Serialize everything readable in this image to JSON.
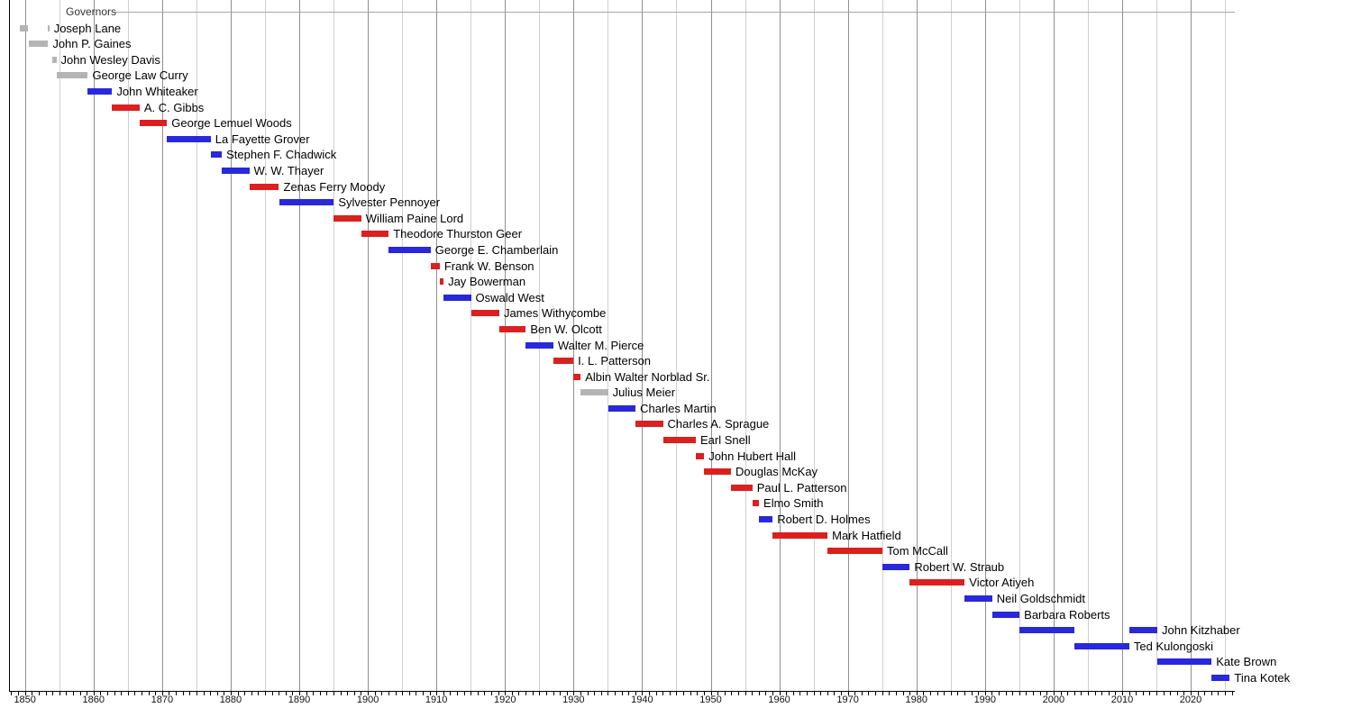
{
  "chart_data": {
    "type": "bar",
    "subtype": "gantt-timeline",
    "title": "Governors",
    "x_axis": {
      "start_year": 1847.7,
      "end_year": 2026.5,
      "gridline_every_years": 5,
      "minor_tick_every_years": 1,
      "decade_labels": [
        "1850",
        "1860",
        "1870",
        "1880",
        "1890",
        "1900",
        "1910",
        "1920",
        "1930",
        "1940",
        "1950",
        "1960",
        "1970",
        "1980",
        "1990",
        "2000",
        "2010",
        "2020"
      ],
      "decade_label_years": [
        1850,
        1860,
        1870,
        1880,
        1890,
        1900,
        1910,
        1920,
        1930,
        1940,
        1950,
        1960,
        1970,
        1980,
        1990,
        2000,
        2010,
        2020
      ]
    },
    "legend_position": "none",
    "grid": true,
    "colors": {
      "red": "#dc1f1f",
      "blue": "#2828dc",
      "gray": "#b4b4b4"
    },
    "governors": [
      {
        "name": "Joseph Lane",
        "color": "gray",
        "terms": [
          {
            "start": 1849.2,
            "end": 1850.5
          },
          {
            "start": 1853.37,
            "end": 1853.55
          }
        ]
      },
      {
        "name": "John P. Gaines",
        "color": "gray",
        "terms": [
          {
            "start": 1850.5,
            "end": 1853.37
          }
        ]
      },
      {
        "name": "John Wesley Davis",
        "color": "gray",
        "terms": [
          {
            "start": 1853.92,
            "end": 1854.58
          }
        ]
      },
      {
        "name": "George Law Curry",
        "color": "gray",
        "terms": [
          {
            "start": 1854.58,
            "end": 1859.17
          }
        ]
      },
      {
        "name": "John Whiteaker",
        "color": "blue",
        "terms": [
          {
            "start": 1859.17,
            "end": 1862.71
          }
        ]
      },
      {
        "name": "A. C. Gibbs",
        "color": "red",
        "terms": [
          {
            "start": 1862.71,
            "end": 1866.71
          }
        ]
      },
      {
        "name": "George Lemuel Woods",
        "color": "red",
        "terms": [
          {
            "start": 1866.71,
            "end": 1870.71
          }
        ]
      },
      {
        "name": "La Fayette Grover",
        "color": "blue",
        "terms": [
          {
            "start": 1870.71,
            "end": 1877.09
          }
        ]
      },
      {
        "name": "Stephen F. Chadwick",
        "color": "blue",
        "terms": [
          {
            "start": 1877.09,
            "end": 1878.71
          }
        ]
      },
      {
        "name": "W. W. Thayer",
        "color": "blue",
        "terms": [
          {
            "start": 1878.71,
            "end": 1882.71
          }
        ]
      },
      {
        "name": "Zenas Ferry Moody",
        "color": "red",
        "terms": [
          {
            "start": 1882.71,
            "end": 1887.04
          }
        ]
      },
      {
        "name": "Sylvester Pennoyer",
        "color": "blue",
        "terms": [
          {
            "start": 1887.04,
            "end": 1895.04
          }
        ]
      },
      {
        "name": "William Paine Lord",
        "color": "red",
        "terms": [
          {
            "start": 1895.04,
            "end": 1899.04
          }
        ]
      },
      {
        "name": "Theodore Thurston Geer",
        "color": "red",
        "terms": [
          {
            "start": 1899.04,
            "end": 1903.04
          }
        ]
      },
      {
        "name": "George E. Chamberlain",
        "color": "blue",
        "terms": [
          {
            "start": 1903.04,
            "end": 1909.16
          }
        ]
      },
      {
        "name": "Frank W. Benson",
        "color": "red",
        "terms": [
          {
            "start": 1909.16,
            "end": 1910.48
          }
        ]
      },
      {
        "name": "Jay Bowerman",
        "color": "red",
        "terms": [
          {
            "start": 1910.48,
            "end": 1911.04
          }
        ]
      },
      {
        "name": "Oswald West",
        "color": "blue",
        "terms": [
          {
            "start": 1911.04,
            "end": 1915.04
          }
        ]
      },
      {
        "name": "James Withycombe",
        "color": "red",
        "terms": [
          {
            "start": 1915.04,
            "end": 1919.17
          }
        ]
      },
      {
        "name": "Ben W. Olcott",
        "color": "red",
        "terms": [
          {
            "start": 1919.17,
            "end": 1923.04
          }
        ]
      },
      {
        "name": "Walter M. Pierce",
        "color": "blue",
        "terms": [
          {
            "start": 1923.04,
            "end": 1927.04
          }
        ]
      },
      {
        "name": "I. L. Patterson",
        "color": "red",
        "terms": [
          {
            "start": 1927.04,
            "end": 1929.97
          }
        ]
      },
      {
        "name": "Albin Walter Norblad Sr.",
        "color": "red",
        "terms": [
          {
            "start": 1929.97,
            "end": 1931.04
          }
        ]
      },
      {
        "name": "Julius Meier",
        "color": "gray",
        "terms": [
          {
            "start": 1931.04,
            "end": 1935.04
          }
        ]
      },
      {
        "name": "Charles Martin",
        "color": "blue",
        "terms": [
          {
            "start": 1935.04,
            "end": 1939.04
          }
        ]
      },
      {
        "name": "Charles A. Sprague",
        "color": "red",
        "terms": [
          {
            "start": 1939.04,
            "end": 1943.04
          }
        ]
      },
      {
        "name": "Earl Snell",
        "color": "red",
        "terms": [
          {
            "start": 1943.04,
            "end": 1947.83
          }
        ]
      },
      {
        "name": "John Hubert Hall",
        "color": "red",
        "terms": [
          {
            "start": 1947.83,
            "end": 1949.04
          }
        ]
      },
      {
        "name": "Douglas McKay",
        "color": "red",
        "terms": [
          {
            "start": 1949.04,
            "end": 1952.96
          }
        ]
      },
      {
        "name": "Paul L. Patterson",
        "color": "red",
        "terms": [
          {
            "start": 1952.96,
            "end": 1956.08
          }
        ]
      },
      {
        "name": "Elmo Smith",
        "color": "red",
        "terms": [
          {
            "start": 1956.08,
            "end": 1957.04
          }
        ]
      },
      {
        "name": "Robert D. Holmes",
        "color": "blue",
        "terms": [
          {
            "start": 1957.04,
            "end": 1959.04
          }
        ]
      },
      {
        "name": "Mark Hatfield",
        "color": "red",
        "terms": [
          {
            "start": 1959.04,
            "end": 1967.04
          }
        ]
      },
      {
        "name": "Tom McCall",
        "color": "red",
        "terms": [
          {
            "start": 1967.04,
            "end": 1975.04
          }
        ]
      },
      {
        "name": "Robert W. Straub",
        "color": "blue",
        "terms": [
          {
            "start": 1975.04,
            "end": 1979.04
          }
        ]
      },
      {
        "name": "Victor Atiyeh",
        "color": "red",
        "terms": [
          {
            "start": 1979.04,
            "end": 1987.04
          }
        ]
      },
      {
        "name": "Neil Goldschmidt",
        "color": "blue",
        "terms": [
          {
            "start": 1987.04,
            "end": 1991.04
          }
        ]
      },
      {
        "name": "Barbara Roberts",
        "color": "blue",
        "terms": [
          {
            "start": 1991.04,
            "end": 1995.04
          }
        ]
      },
      {
        "name": "John Kitzhaber",
        "color": "blue",
        "terms": [
          {
            "start": 1995.04,
            "end": 2003.04
          },
          {
            "start": 2011.04,
            "end": 2015.13
          }
        ]
      },
      {
        "name": "Ted Kulongoski",
        "color": "blue",
        "terms": [
          {
            "start": 2003.04,
            "end": 2011.04
          }
        ]
      },
      {
        "name": "Kate Brown",
        "color": "blue",
        "terms": [
          {
            "start": 2015.13,
            "end": 2023.04
          }
        ]
      },
      {
        "name": "Tina Kotek",
        "color": "blue",
        "terms": [
          {
            "start": 2023.04,
            "end": 2025.7
          }
        ]
      }
    ]
  }
}
